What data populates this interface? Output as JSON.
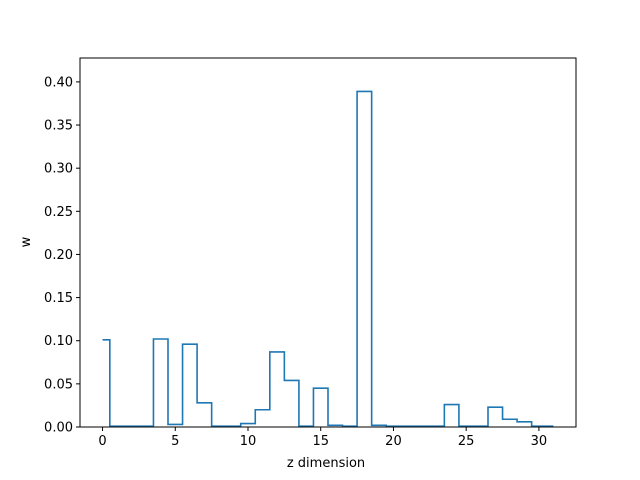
{
  "chart_data": {
    "type": "step",
    "title": "",
    "xlabel": "z dimension",
    "ylabel": "w",
    "xlim": [
      -1.55,
      32.55
    ],
    "ylim": [
      0,
      0.4277
    ],
    "grid": false,
    "legend": "none",
    "series_color": "#1f77b4",
    "x_ticks": [
      0,
      5,
      10,
      15,
      20,
      25,
      30
    ],
    "y_ticks": [
      0.0,
      0.05,
      0.1,
      0.15,
      0.2,
      0.25,
      0.3,
      0.35,
      0.4
    ],
    "x_tick_labels": [
      "0",
      "5",
      "10",
      "15",
      "20",
      "25",
      "30"
    ],
    "y_tick_labels": [
      "0.00",
      "0.05",
      "0.10",
      "0.15",
      "0.20",
      "0.25",
      "0.30",
      "0.35",
      "0.40"
    ],
    "x": [
      0,
      1,
      2,
      3,
      4,
      5,
      6,
      7,
      8,
      9,
      10,
      11,
      12,
      13,
      14,
      15,
      16,
      17,
      18,
      19,
      20,
      21,
      22,
      23,
      24,
      25,
      26,
      27,
      28,
      29,
      30,
      31
    ],
    "values": [
      0.101,
      0.001,
      0.001,
      0.001,
      0.102,
      0.003,
      0.096,
      0.028,
      0.001,
      0.001,
      0.004,
      0.02,
      0.087,
      0.054,
      0.001,
      0.045,
      0.002,
      0.001,
      0.389,
      0.002,
      0.001,
      0.001,
      0.001,
      0.001,
      0.026,
      0.001,
      0.001,
      0.023,
      0.009,
      0.006,
      0.001,
      0.001
    ]
  }
}
